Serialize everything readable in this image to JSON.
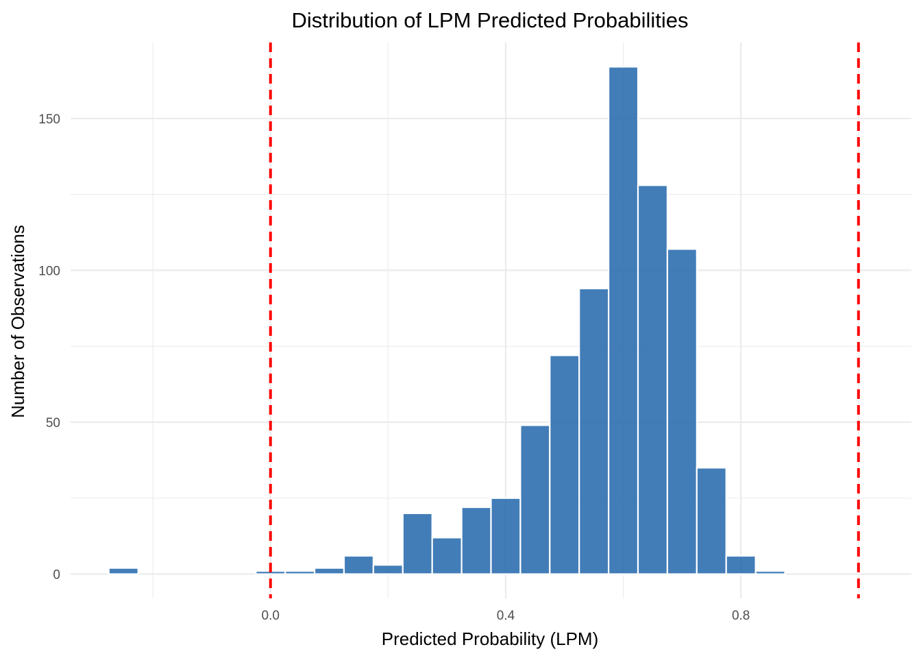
{
  "chart_data": {
    "type": "bar",
    "title": "Distribution of LPM Predicted Probabilities",
    "xlabel": "Predicted Probability (LPM)",
    "ylabel": "Number of Observations",
    "xlim": [
      -0.34,
      1.09
    ],
    "ylim": [
      -8,
      175
    ],
    "x_ticks": [
      0.0,
      0.4,
      0.8
    ],
    "x_tick_labels": [
      "0.0",
      "0.4",
      "0.8"
    ],
    "x_minor_ticks": [
      -0.4,
      -0.2,
      0.2,
      0.6,
      1.0
    ],
    "y_ticks": [
      0,
      50,
      100,
      150
    ],
    "y_tick_labels": [
      "0",
      "50",
      "100",
      "150"
    ],
    "y_minor_ticks": [
      25,
      75,
      125
    ],
    "bin_width": 0.05,
    "bins": [
      {
        "x": -0.25,
        "count": 2
      },
      {
        "x": 0.0,
        "count": 1
      },
      {
        "x": 0.05,
        "count": 1
      },
      {
        "x": 0.1,
        "count": 2
      },
      {
        "x": 0.15,
        "count": 6
      },
      {
        "x": 0.2,
        "count": 3
      },
      {
        "x": 0.25,
        "count": 20
      },
      {
        "x": 0.3,
        "count": 12
      },
      {
        "x": 0.35,
        "count": 22
      },
      {
        "x": 0.4,
        "count": 25
      },
      {
        "x": 0.45,
        "count": 49
      },
      {
        "x": 0.5,
        "count": 72
      },
      {
        "x": 0.55,
        "count": 94
      },
      {
        "x": 0.6,
        "count": 167
      },
      {
        "x": 0.65,
        "count": 128
      },
      {
        "x": 0.7,
        "count": 107
      },
      {
        "x": 0.75,
        "count": 35
      },
      {
        "x": 0.8,
        "count": 6
      },
      {
        "x": 0.85,
        "count": 1
      }
    ],
    "reference_lines": [
      {
        "x": 0,
        "color": "#ff0000",
        "style": "dashed"
      },
      {
        "x": 1,
        "color": "#ff0000",
        "style": "dashed"
      }
    ],
    "bar_color": "#2166ac",
    "grid": true
  }
}
